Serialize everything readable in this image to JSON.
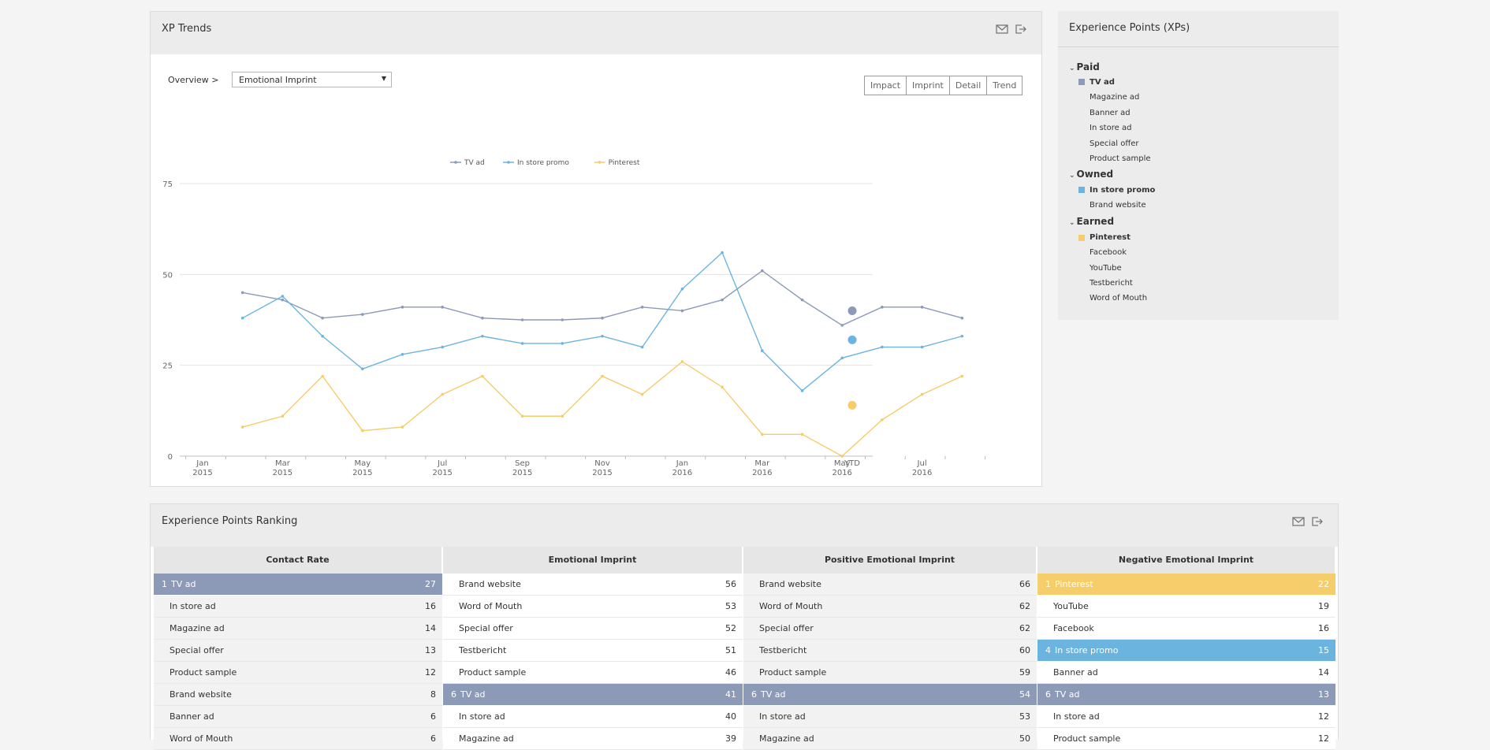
{
  "trends": {
    "title": "XP Trends",
    "overview_label": "Overview >",
    "select_value": "Emotional Imprint",
    "buttons": [
      "Impact",
      "Imprint",
      "Detail",
      "Trend"
    ]
  },
  "chart_data": {
    "type": "line",
    "ylim": [
      0,
      75
    ],
    "yticks": [
      0,
      25,
      50,
      75
    ],
    "x_ticks": [
      {
        "m": "Jan",
        "y": "2015"
      },
      {
        "m": "Mar",
        "y": "2015"
      },
      {
        "m": "May",
        "y": "2015"
      },
      {
        "m": "Jul",
        "y": "2015"
      },
      {
        "m": "Sep",
        "y": "2015"
      },
      {
        "m": "Nov",
        "y": "2015"
      },
      {
        "m": "Jan",
        "y": "2016"
      },
      {
        "m": "Mar",
        "y": "2016"
      },
      {
        "m": "May",
        "y": "2016"
      },
      {
        "m": "Jul",
        "y": "2016"
      },
      {
        "m": "YTD",
        "y": ""
      }
    ],
    "series": [
      {
        "name": "TV ad",
        "color": "#8c9ab8",
        "values": [
          45,
          43,
          38,
          39,
          41,
          41,
          38,
          37.5,
          37.5,
          38,
          41,
          40,
          43,
          51,
          43,
          36,
          41,
          41,
          38
        ],
        "ytd": 40
      },
      {
        "name": "In store promo",
        "color": "#6cb4e0",
        "values": [
          38,
          44,
          33,
          24,
          28,
          30,
          33,
          31,
          31,
          33,
          30,
          46,
          56,
          29,
          18,
          27,
          30,
          30,
          33
        ],
        "ytd": 32
      },
      {
        "name": "Pinterest",
        "color": "#f5cd6a",
        "values": [
          8,
          11,
          22,
          7,
          8,
          17,
          22,
          11,
          11,
          22,
          17,
          26,
          19,
          6,
          6,
          0,
          10,
          17,
          22
        ],
        "ytd": 14
      }
    ]
  },
  "xps": {
    "title": "Experience Points (XPs)",
    "groups": [
      {
        "label": "Paid",
        "items": [
          "TV ad",
          "Magazine ad",
          "Banner ad",
          "In store ad",
          "Special offer",
          "Product sample"
        ]
      },
      {
        "label": "Owned",
        "items": [
          "In store promo",
          "Brand website"
        ]
      },
      {
        "label": "Earned",
        "items": [
          "Pinterest",
          "Facebook",
          "YouTube",
          "Testbericht",
          "Word of Mouth"
        ]
      }
    ],
    "swatch_colors": {
      "TV ad": "#8c9ab8",
      "In store promo": "#6cb4e0",
      "Pinterest": "#f5cd6a"
    }
  },
  "ranking": {
    "title": "Experience Points Ranking",
    "columns": [
      {
        "header": "Contact Rate",
        "rows": [
          {
            "rank": "1",
            "name": "TV ad",
            "value": "27",
            "hl": "#8c9ab8"
          },
          {
            "rank": "",
            "name": "In store ad",
            "value": "16"
          },
          {
            "rank": "",
            "name": "Magazine ad",
            "value": "14"
          },
          {
            "rank": "",
            "name": "Special offer",
            "value": "13"
          },
          {
            "rank": "",
            "name": "Product sample",
            "value": "12"
          },
          {
            "rank": "",
            "name": "Brand website",
            "value": "8"
          },
          {
            "rank": "",
            "name": "Banner ad",
            "value": "6"
          },
          {
            "rank": "",
            "name": "Word of Mouth",
            "value": "6"
          }
        ]
      },
      {
        "header": "Emotional Imprint",
        "rows": [
          {
            "rank": "",
            "name": "Brand website",
            "value": "56"
          },
          {
            "rank": "",
            "name": "Word of Mouth",
            "value": "53"
          },
          {
            "rank": "",
            "name": "Special offer",
            "value": "52"
          },
          {
            "rank": "",
            "name": "Testbericht",
            "value": "51"
          },
          {
            "rank": "",
            "name": "Product sample",
            "value": "46"
          },
          {
            "rank": "6",
            "name": "TV ad",
            "value": "41",
            "hl": "#8c9ab8"
          },
          {
            "rank": "",
            "name": "In store ad",
            "value": "40"
          },
          {
            "rank": "",
            "name": "Magazine ad",
            "value": "39"
          }
        ]
      },
      {
        "header": "Positive Emotional Imprint",
        "rows": [
          {
            "rank": "",
            "name": "Brand website",
            "value": "66"
          },
          {
            "rank": "",
            "name": "Word of Mouth",
            "value": "62"
          },
          {
            "rank": "",
            "name": "Special offer",
            "value": "62"
          },
          {
            "rank": "",
            "name": "Testbericht",
            "value": "60"
          },
          {
            "rank": "",
            "name": "Product sample",
            "value": "59"
          },
          {
            "rank": "6",
            "name": "TV ad",
            "value": "54",
            "hl": "#8c9ab8"
          },
          {
            "rank": "",
            "name": "In store ad",
            "value": "53"
          },
          {
            "rank": "",
            "name": "Magazine ad",
            "value": "50"
          }
        ]
      },
      {
        "header": "Negative Emotional Imprint",
        "rows": [
          {
            "rank": "1",
            "name": "Pinterest",
            "value": "22",
            "hl": "#f5cd6a"
          },
          {
            "rank": "",
            "name": "YouTube",
            "value": "19"
          },
          {
            "rank": "",
            "name": "Facebook",
            "value": "16"
          },
          {
            "rank": "4",
            "name": "In store promo",
            "value": "15",
            "hl": "#6cb4e0"
          },
          {
            "rank": "",
            "name": "Banner ad",
            "value": "14"
          },
          {
            "rank": "6",
            "name": "TV ad",
            "value": "13",
            "hl": "#8c9ab8"
          },
          {
            "rank": "",
            "name": "In store ad",
            "value": "12"
          },
          {
            "rank": "",
            "name": "Product sample",
            "value": "12"
          }
        ]
      }
    ]
  }
}
